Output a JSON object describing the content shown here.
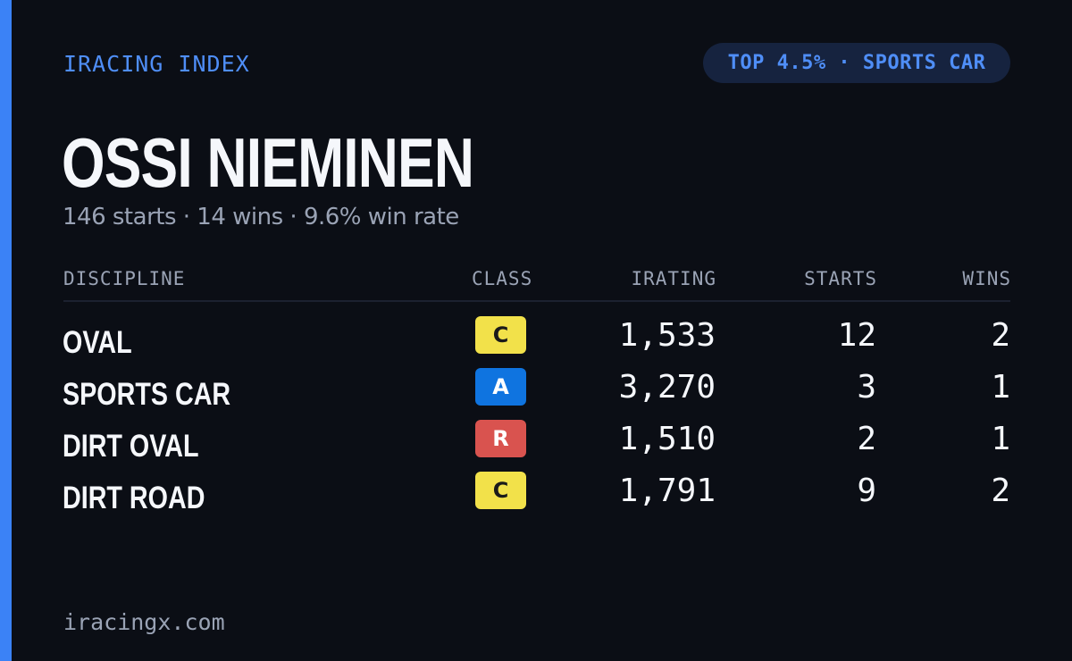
{
  "brand": "IRACING INDEX",
  "rank_badge": "TOP 4.5% · SPORTS CAR",
  "driver": {
    "name": "OSSI NIEMINEN",
    "summary": "146 starts · 14 wins · 9.6% win rate"
  },
  "table": {
    "headers": {
      "discipline": "DISCIPLINE",
      "class": "CLASS",
      "irating": "IRATING",
      "starts": "STARTS",
      "wins": "WINS"
    },
    "rows": [
      {
        "discipline": "OVAL",
        "class": "C",
        "irating": "1,533",
        "starts": "12",
        "wins": "2"
      },
      {
        "discipline": "SPORTS CAR",
        "class": "A",
        "irating": "3,270",
        "starts": "3",
        "wins": "1"
      },
      {
        "discipline": "DIRT OVAL",
        "class": "R",
        "irating": "1,510",
        "starts": "2",
        "wins": "1"
      },
      {
        "discipline": "DIRT ROAD",
        "class": "C",
        "irating": "1,791",
        "starts": "9",
        "wins": "2"
      }
    ]
  },
  "class_colors": {
    "C": {
      "bg": "#f2e14a",
      "fg": "#1a1a1a"
    },
    "A": {
      "bg": "#0f74e0",
      "fg": "#ffffff"
    },
    "R": {
      "bg": "#d9534f",
      "fg": "#ffffff"
    }
  },
  "colors": {
    "background": "#0b0e15",
    "accent": "#3b82f6",
    "muted": "#9aa3b5",
    "text": "#f5f7fb"
  },
  "footer": "iracingx.com"
}
